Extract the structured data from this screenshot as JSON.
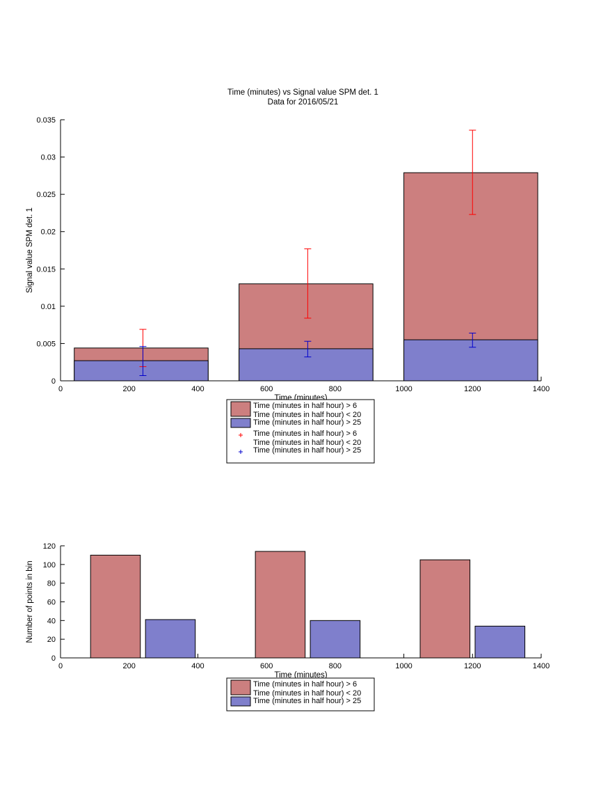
{
  "colors": {
    "red_bar": "#cc7f7f",
    "blue_bar": "#7f7fcc",
    "red_err": "#ff0000",
    "blue_err": "#0000cc",
    "axis": "#000000"
  },
  "chart_data": [
    {
      "type": "bar",
      "title": "Time (minutes) vs Signal value SPM det. 1",
      "subtitle": "Data for 2016/05/21",
      "xlabel": "Time (minutes)",
      "ylabel": "Signal value SPM det. 1",
      "xlim": [
        0,
        1400
      ],
      "ylim": [
        0,
        0.035
      ],
      "xticks": [
        "0",
        "200",
        "400",
        "600",
        "800",
        "1000",
        "1200",
        "1400"
      ],
      "yticks": [
        "0",
        "0.005",
        "0.01",
        "0.015",
        "0.02",
        "0.025",
        "0.03",
        "0.035"
      ],
      "bar_centers": [
        240,
        720,
        1200
      ],
      "bar_edges": [
        [
          40,
          430
        ],
        [
          520,
          910
        ],
        [
          1000,
          1390
        ]
      ],
      "series": [
        {
          "name": "Time (minutes in half hour) > 6\nTime (minutes in half hour) < 20",
          "values": [
            0.0044,
            0.013,
            0.0279
          ]
        },
        {
          "name": "Time (minutes in half hour) > 25",
          "values": [
            0.0027,
            0.0043,
            0.0055
          ]
        }
      ],
      "errorbars": [
        {
          "name": "Time (minutes in half hour) > 6\nTime (minutes in half hour) < 20",
          "x": [
            240,
            720,
            1200
          ],
          "low": [
            0.0019,
            0.0084,
            0.0223
          ],
          "high": [
            0.0069,
            0.0177,
            0.0336
          ]
        },
        {
          "name": "Time (minutes in half hour) > 25",
          "x": [
            240,
            720,
            1200
          ],
          "low": [
            0.0007,
            0.0032,
            0.0045
          ],
          "high": [
            0.0046,
            0.0053,
            0.0064
          ]
        }
      ],
      "legend": [
        {
          "label1": "Time (minutes in half hour) > 6",
          "label2": "Time (minutes in half hour) < 20",
          "kind": "patch",
          "color": "red"
        },
        {
          "label1": "Time (minutes in half hour) > 25",
          "label2": "",
          "kind": "patch",
          "color": "blue"
        },
        {
          "label1": "Time (minutes in half hour) > 6",
          "label2": "Time (minutes in half hour) < 20",
          "kind": "marker",
          "color": "red"
        },
        {
          "label1": "Time (minutes in half hour) > 25",
          "label2": "",
          "kind": "marker",
          "color": "blue"
        }
      ],
      "legend_placement": "bottom-center",
      "grid": false
    },
    {
      "type": "bar",
      "title": "",
      "xlabel": "Time (minutes)",
      "ylabel": "Number of points in bin",
      "xlim": [
        0,
        1400
      ],
      "ylim": [
        0,
        120
      ],
      "xticks": [
        "0",
        "200",
        "400",
        "600",
        "800",
        "1000",
        "1200",
        "1400"
      ],
      "yticks": [
        "0",
        "20",
        "40",
        "60",
        "80",
        "100",
        "120"
      ],
      "series": [
        {
          "name": "Time (minutes in half hour) > 6\nTime (minutes in half hour) < 20",
          "centers": [
            160,
            640,
            1120
          ],
          "values": [
            110,
            114,
            105
          ]
        },
        {
          "name": "Time (minutes in half hour) > 25",
          "centers": [
            320,
            800,
            1280
          ],
          "values": [
            41,
            40,
            34
          ]
        }
      ],
      "bar_width": 145,
      "legend": [
        {
          "label1": "Time (minutes in half hour) > 6",
          "label2": "Time (minutes in half hour) < 20",
          "kind": "patch",
          "color": "red"
        },
        {
          "label1": "Time (minutes in half hour) > 25",
          "label2": "",
          "kind": "patch",
          "color": "blue"
        }
      ],
      "legend_placement": "bottom-center",
      "grid": false
    }
  ]
}
